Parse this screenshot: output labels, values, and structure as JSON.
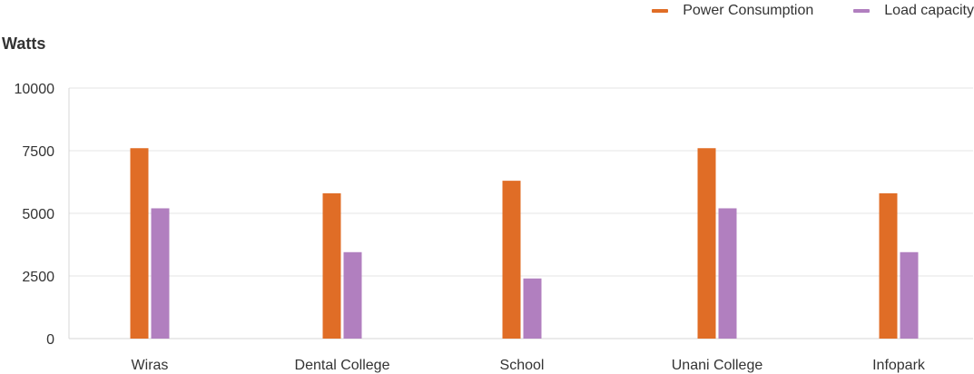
{
  "legend": [
    {
      "label": "Power Consumption",
      "color": "#e06d26"
    },
    {
      "label": "Load capacity",
      "color": "#b17fbf"
    }
  ],
  "chart_data": {
    "type": "bar",
    "title": "",
    "xlabel": "",
    "ylabel": "Watts",
    "categories": [
      "Wiras",
      "Dental College",
      "School",
      "Unani College",
      "Infopark"
    ],
    "series": [
      {
        "name": "Power Consumption",
        "color": "#e06d26",
        "values": [
          7600,
          5800,
          6300,
          7600,
          5800
        ]
      },
      {
        "name": "Load capacity",
        "color": "#b17fbf",
        "values": [
          5200,
          3450,
          2400,
          5200,
          3450
        ]
      }
    ],
    "ylim": [
      0,
      10000
    ],
    "yticks": [
      "0",
      "2500",
      "5000",
      "7500",
      "10000"
    ],
    "grid": true,
    "legend_position": "top-right"
  }
}
